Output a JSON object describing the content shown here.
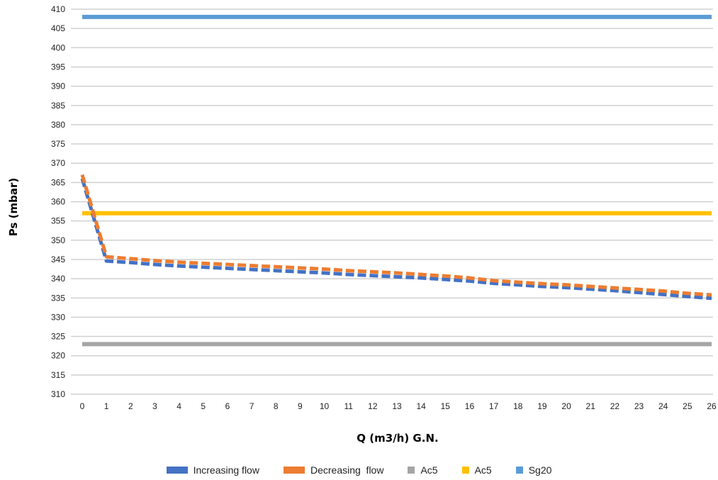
{
  "chart_data": {
    "type": "line",
    "xlabel": "Q (m3/h) G.N.",
    "ylabel": "Ps (mbar)",
    "ylim": [
      310,
      410
    ],
    "ytick_step": 5,
    "categories": [
      0,
      1,
      2,
      3,
      4,
      5,
      6,
      7,
      8,
      9,
      10,
      11,
      12,
      13,
      14,
      15,
      16,
      17,
      18,
      19,
      20,
      21,
      22,
      23,
      24,
      25,
      26
    ],
    "grid": "horizontal",
    "legend_position": "bottom",
    "series": [
      {
        "name": "Increasing flow",
        "color": "#4472C4",
        "style": "dashed",
        "values": [
          366,
          344.6,
          344.2,
          343.7,
          343.3,
          343.0,
          342.7,
          342.4,
          342.1,
          341.8,
          341.5,
          341.1,
          340.8,
          340.5,
          340.2,
          339.8,
          339.4,
          338.8,
          338.4,
          338.0,
          337.7,
          337.3,
          336.9,
          336.4,
          335.9,
          335.4,
          334.9
        ]
      },
      {
        "name": "Decreasing  flow",
        "color": "#ED7D31",
        "style": "dashed",
        "values": [
          367,
          345.7,
          345.2,
          344.7,
          344.3,
          344.0,
          343.7,
          343.4,
          343.1,
          342.8,
          342.5,
          342.1,
          341.8,
          341.5,
          341.1,
          340.7,
          340.2,
          339.5,
          339.1,
          338.7,
          338.4,
          338.0,
          337.6,
          337.2,
          336.8,
          336.2,
          335.8
        ]
      },
      {
        "name": "Ac5",
        "color": "#A5A5A5",
        "style": "solid",
        "constant": 323
      },
      {
        "name": "Ac5",
        "color": "#FFC000",
        "style": "solid",
        "constant": 357
      },
      {
        "name": "Sg20",
        "color": "#5B9BD5",
        "style": "solid",
        "constant": 408
      }
    ]
  }
}
